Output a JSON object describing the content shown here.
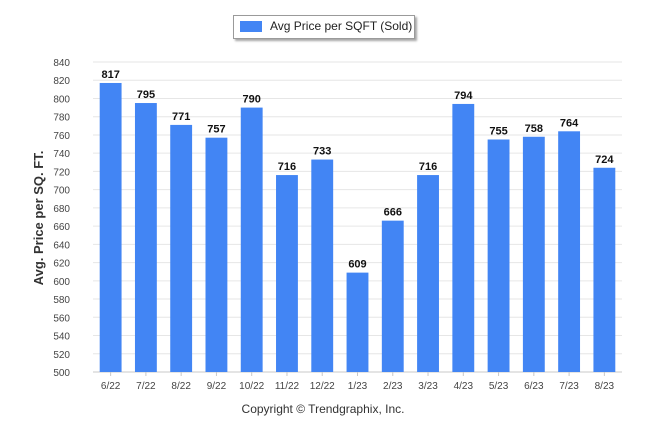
{
  "chart_data": {
    "type": "bar",
    "legend": [
      "Avg Price per SQFT (Sold)"
    ],
    "legend_position": "top-center",
    "ylabel": "Avg. Price per SQ. FT.",
    "xlabel": "",
    "ylim": [
      500,
      840
    ],
    "ytick_step": 20,
    "grid": true,
    "categories": [
      "6/22",
      "7/22",
      "8/22",
      "9/22",
      "10/22",
      "11/22",
      "12/22",
      "1/23",
      "2/23",
      "3/23",
      "4/23",
      "5/23",
      "6/23",
      "7/23",
      "8/23"
    ],
    "series": [
      {
        "name": "Avg Price per SQFT (Sold)",
        "color": "#4285f4",
        "values": [
          817,
          795,
          771,
          757,
          790,
          716,
          733,
          609,
          666,
          716,
          794,
          755,
          758,
          764,
          724
        ]
      }
    ]
  },
  "footer": {
    "copyright": "Copyright © Trendgraphix, Inc."
  }
}
